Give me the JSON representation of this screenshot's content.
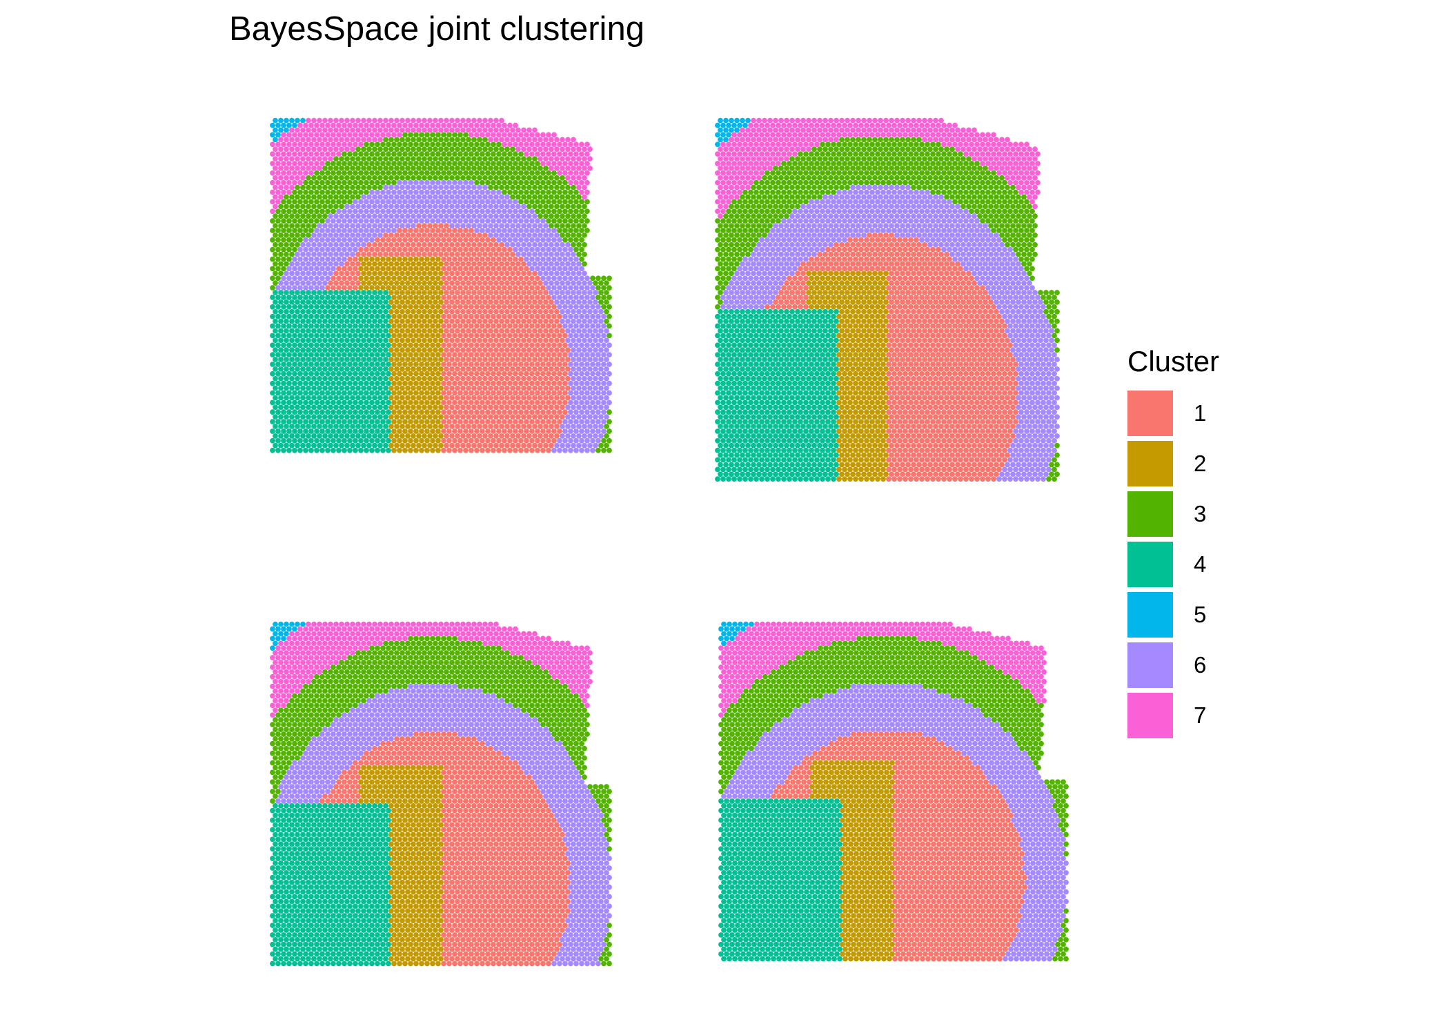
{
  "title": "BayesSpace joint clustering",
  "legend": {
    "title": "Cluster",
    "items": [
      {
        "label": "1",
        "color": "#F8766D"
      },
      {
        "label": "2",
        "color": "#C49A00"
      },
      {
        "label": "3",
        "color": "#53B400"
      },
      {
        "label": "4",
        "color": "#00C094"
      },
      {
        "label": "5",
        "color": "#00B6EB"
      },
      {
        "label": "6",
        "color": "#A58AFF"
      },
      {
        "label": "7",
        "color": "#FB61D7"
      }
    ]
  },
  "chart_data": {
    "type": "scatter",
    "plot": "spatial spot map (4 tissue sections)",
    "colored_by": "Cluster",
    "categories": [
      "1",
      "2",
      "3",
      "4",
      "5",
      "6",
      "7"
    ],
    "panels": 4,
    "axes": "none",
    "grid": false,
    "legend_position": "right"
  }
}
